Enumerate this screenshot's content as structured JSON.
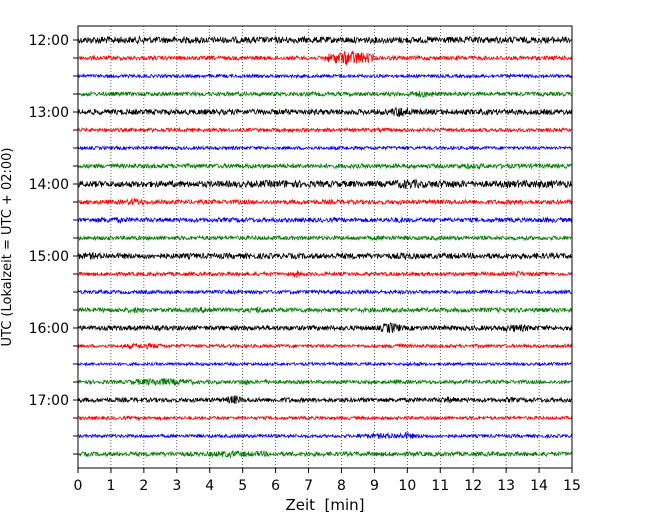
{
  "chart_data": {
    "type": "line",
    "title": "",
    "xlabel": "Zeit  [min]",
    "ylabel": "UTC (Lokalzeit = UTC + 02:00)",
    "xlim": [
      0,
      15
    ],
    "x_ticks": [
      "0",
      "1",
      "2",
      "3",
      "4",
      "5",
      "6",
      "7",
      "8",
      "9",
      "10",
      "11",
      "12",
      "13",
      "14",
      "15"
    ],
    "y_tick_labels": [
      "12:00",
      "13:00",
      "14:00",
      "15:00",
      "16:00",
      "17:00"
    ],
    "grid": "vertical dotted lines at each minute",
    "colors": [
      "#000000",
      "#ff0000",
      "#0000ff",
      "#008000"
    ],
    "trace_interval_min": 15,
    "trace_start_times": [
      "12:00",
      "12:15",
      "12:30",
      "12:45",
      "13:00",
      "13:15",
      "13:30",
      "13:45",
      "14:00",
      "14:15",
      "14:30",
      "14:45",
      "15:00",
      "15:15",
      "15:30",
      "15:45",
      "16:00",
      "16:15",
      "16:30",
      "16:45",
      "17:00",
      "17:15",
      "17:30",
      "17:45"
    ],
    "trace_colors": [
      "#000000",
      "#ff0000",
      "#0000ff",
      "#008000",
      "#000000",
      "#ff0000",
      "#0000ff",
      "#008000",
      "#000000",
      "#ff0000",
      "#0000ff",
      "#008000",
      "#000000",
      "#ff0000",
      "#0000ff",
      "#008000",
      "#000000",
      "#ff0000",
      "#0000ff",
      "#008000",
      "#000000",
      "#ff0000",
      "#0000ff",
      "#008000"
    ],
    "trace_noise": [
      3.2,
      2.0,
      1.6,
      2.0,
      2.8,
      1.8,
      1.6,
      2.2,
      3.2,
      2.2,
      2.2,
      2.0,
      2.8,
      1.8,
      1.8,
      2.2,
      2.4,
      1.6,
      1.4,
      1.8,
      2.2,
      1.6,
      1.6,
      2.2
    ],
    "events": [
      [
        [
          0.3,
          1.0,
          4
        ],
        [
          1.0,
          1.5,
          3.5
        ],
        [
          1.6,
          2.3,
          3.5
        ]
      ],
      [
        [
          7.5,
          9.0,
          8
        ]
      ],
      [],
      [
        [
          10.0,
          10.8,
          3.5
        ],
        [
          7.3,
          7.5,
          2
        ]
      ],
      [
        [
          9.5,
          10.1,
          6
        ]
      ],
      [],
      [],
      [
        [
          11.5,
          12.3,
          3
        ]
      ],
      [
        [
          5.5,
          7.0,
          4
        ],
        [
          7.0,
          9.0,
          3
        ],
        [
          9.5,
          10.5,
          5
        ],
        [
          10.5,
          11.8,
          4
        ],
        [
          13.0,
          15.0,
          4
        ]
      ],
      [
        [
          1.5,
          2.0,
          4
        ]
      ],
      [
        [
          0.5,
          1.5,
          3
        ],
        [
          4.7,
          5.0,
          2.5
        ],
        [
          9.5,
          10.0,
          3
        ],
        [
          14.0,
          14.5,
          2.5
        ]
      ],
      [
        [
          1.2,
          1.8,
          2
        ],
        [
          9.0,
          9.5,
          2.5
        ]
      ],
      [
        [
          0.0,
          0.8,
          3.5
        ],
        [
          3.3,
          3.6,
          2.5
        ],
        [
          5.5,
          6.5,
          2.5
        ],
        [
          8.0,
          8.5,
          3
        ],
        [
          9.7,
          10.2,
          4
        ],
        [
          11.0,
          11.5,
          3
        ],
        [
          13.8,
          14.2,
          3
        ]
      ],
      [
        [
          6.5,
          6.8,
          4
        ],
        [
          13.2,
          13.5,
          3.5
        ]
      ],
      [
        [
          12.0,
          12.5,
          2
        ]
      ],
      [
        [
          1.5,
          2.0,
          3
        ],
        [
          3.7,
          4.2,
          4
        ],
        [
          5.3,
          5.7,
          4
        ]
      ],
      [
        [
          9.2,
          9.8,
          6
        ],
        [
          12.8,
          13.8,
          4
        ]
      ],
      [
        [
          1.3,
          2.7,
          3
        ],
        [
          9.5,
          9.9,
          3
        ],
        [
          14.5,
          15.0,
          2.5
        ]
      ],
      [
        [
          10.0,
          10.5,
          2
        ]
      ],
      [
        [
          1.5,
          3.5,
          4
        ],
        [
          4.9,
          5.2,
          3.5
        ],
        [
          5.6,
          5.8,
          3
        ],
        [
          9.6,
          9.8,
          3
        ]
      ],
      [
        [
          4.5,
          5.0,
          5
        ],
        [
          6.2,
          6.5,
          3
        ],
        [
          11.0,
          11.5,
          3.5
        ],
        [
          13.0,
          13.3,
          3
        ]
      ],
      [],
      [
        [
          5.5,
          5.8,
          2.5
        ],
        [
          8.5,
          10.5,
          3
        ],
        [
          9.8,
          10.2,
          4
        ]
      ],
      [
        [
          4.0,
          5.3,
          3.5
        ],
        [
          5.3,
          5.8,
          3
        ]
      ]
    ]
  }
}
